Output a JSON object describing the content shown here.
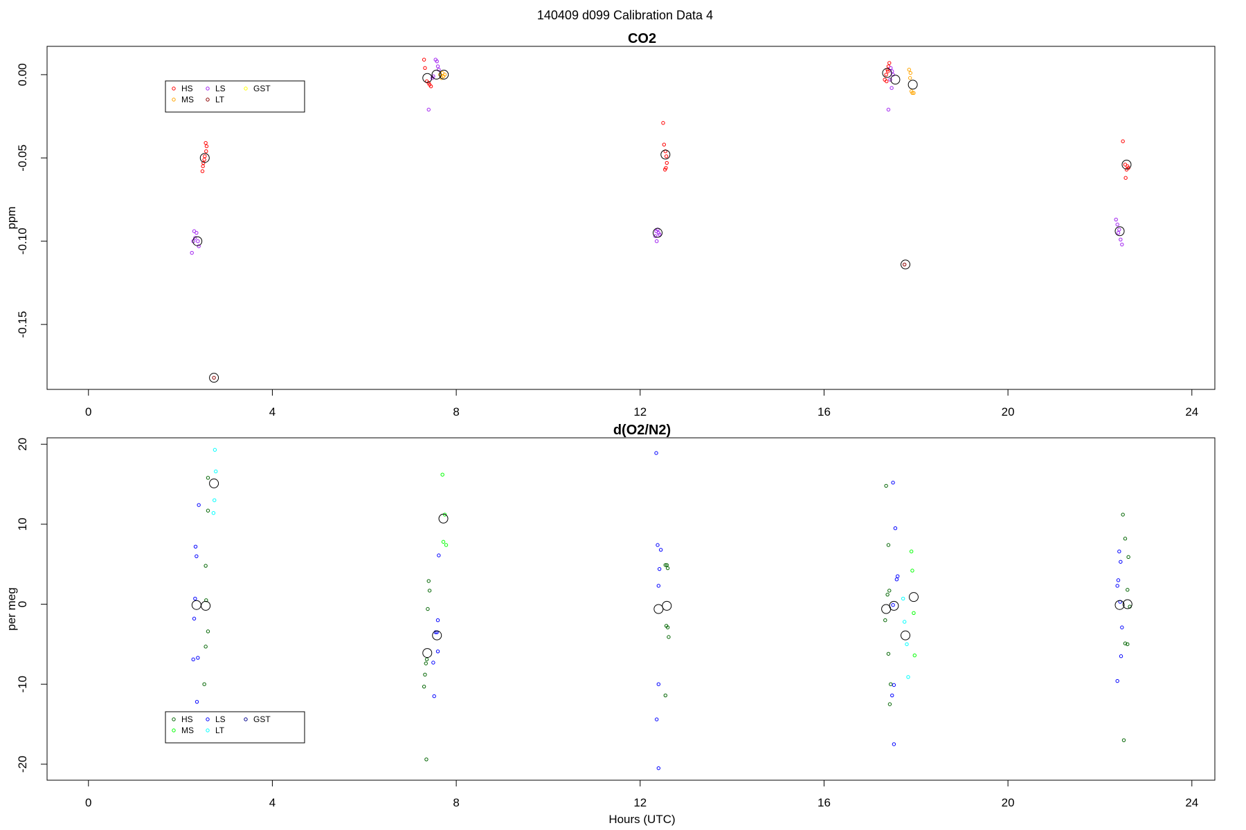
{
  "figure": {
    "suptitle": "140409   d099   Calibration Data 4"
  },
  "chart_data": [
    {
      "type": "scatter",
      "title": "CO2",
      "xlabel": "",
      "ylabel": "ppm",
      "xlim": [
        -0.9,
        24.5
      ],
      "ylim": [
        -0.189,
        0.017
      ],
      "xticks": [
        0,
        4,
        8,
        12,
        16,
        20,
        24
      ],
      "yticks": [
        0.0,
        -0.05,
        -0.1,
        -0.15
      ],
      "ytick_labels": [
        "0.00",
        "-0.05",
        "-0.10",
        "-0.15"
      ],
      "grid": false,
      "legend": {
        "placement": "top-left",
        "entries": [
          {
            "label": "HS",
            "color": "#ff0000"
          },
          {
            "label": "LS",
            "color": "#a020f0"
          },
          {
            "label": "GST",
            "color": "#ffff00"
          },
          {
            "label": "MS",
            "color": "#ffa500"
          },
          {
            "label": "LT",
            "color": "#8b0000"
          }
        ]
      },
      "series": [
        {
          "name": "HS",
          "color": "#ff0000",
          "points": [
            [
              2.55,
              -0.041
            ],
            [
              2.57,
              -0.043
            ],
            [
              2.56,
              -0.046
            ],
            [
              2.53,
              -0.049
            ],
            [
              2.52,
              -0.051
            ],
            [
              2.5,
              -0.053
            ],
            [
              2.49,
              -0.055
            ],
            [
              2.48,
              -0.058
            ],
            [
              7.3,
              0.009
            ],
            [
              7.32,
              0.004
            ],
            [
              7.36,
              -0.004
            ],
            [
              7.4,
              -0.005
            ],
            [
              7.42,
              -0.006
            ],
            [
              7.45,
              -0.007
            ],
            [
              12.5,
              -0.029
            ],
            [
              12.52,
              -0.042
            ],
            [
              12.55,
              -0.046
            ],
            [
              12.57,
              -0.049
            ],
            [
              12.58,
              -0.053
            ],
            [
              12.56,
              -0.056
            ],
            [
              12.54,
              -0.057
            ],
            [
              17.35,
              0.0
            ],
            [
              17.38,
              0.003
            ],
            [
              17.4,
              0.005
            ],
            [
              17.42,
              0.007
            ],
            [
              17.32,
              -0.003
            ],
            [
              17.36,
              -0.004
            ],
            [
              17.39,
              0.002
            ],
            [
              22.5,
              -0.04
            ],
            [
              22.55,
              -0.054
            ],
            [
              22.6,
              -0.055
            ],
            [
              22.62,
              -0.056
            ],
            [
              22.58,
              -0.057
            ],
            [
              22.56,
              -0.062
            ]
          ]
        },
        {
          "name": "LS",
          "color": "#a020f0",
          "points": [
            [
              2.3,
              -0.094
            ],
            [
              2.35,
              -0.095
            ],
            [
              2.32,
              -0.098
            ],
            [
              2.28,
              -0.1
            ],
            [
              2.38,
              -0.1
            ],
            [
              2.4,
              -0.103
            ],
            [
              2.25,
              -0.107
            ],
            [
              7.4,
              -0.021
            ],
            [
              7.55,
              0.009
            ],
            [
              7.58,
              0.008
            ],
            [
              7.6,
              0.005
            ],
            [
              7.62,
              0.003
            ],
            [
              7.5,
              -0.001
            ],
            [
              7.48,
              -0.002
            ],
            [
              12.35,
              -0.094
            ],
            [
              12.38,
              -0.093
            ],
            [
              12.4,
              -0.095
            ],
            [
              12.42,
              -0.096
            ],
            [
              12.33,
              -0.097
            ],
            [
              12.36,
              -0.1
            ],
            [
              17.4,
              -0.021
            ],
            [
              17.45,
              0.004
            ],
            [
              17.48,
              0.002
            ],
            [
              17.5,
              0.0
            ],
            [
              17.44,
              -0.003
            ],
            [
              17.47,
              -0.008
            ],
            [
              22.35,
              -0.087
            ],
            [
              22.38,
              -0.09
            ],
            [
              22.42,
              -0.093
            ],
            [
              22.4,
              -0.095
            ],
            [
              22.45,
              -0.099
            ],
            [
              22.48,
              -0.102
            ]
          ]
        },
        {
          "name": "MS",
          "color": "#ffa500",
          "points": [
            [
              7.65,
              0.0
            ],
            [
              7.7,
              0.001
            ],
            [
              7.72,
              -0.001
            ],
            [
              7.75,
              0.0
            ],
            [
              7.68,
              -0.002
            ],
            [
              17.85,
              0.003
            ],
            [
              17.88,
              0.001
            ],
            [
              17.9,
              -0.01
            ],
            [
              17.92,
              -0.011
            ],
            [
              17.95,
              -0.011
            ],
            [
              17.87,
              -0.002
            ]
          ]
        },
        {
          "name": "LT",
          "color": "#8b0000",
          "points": [
            [
              2.73,
              -0.182
            ],
            [
              17.75,
              -0.114
            ]
          ]
        },
        {
          "name": "GST",
          "color": "#ffff00",
          "points": []
        }
      ],
      "means": [
        [
          2.53,
          -0.05
        ],
        [
          2.37,
          -0.1
        ],
        [
          2.73,
          -0.182
        ],
        [
          7.37,
          -0.002
        ],
        [
          7.57,
          0.0
        ],
        [
          7.73,
          0.0
        ],
        [
          12.55,
          -0.048
        ],
        [
          12.38,
          -0.095
        ],
        [
          17.37,
          0.001
        ],
        [
          17.55,
          -0.003
        ],
        [
          17.77,
          -0.114
        ],
        [
          17.93,
          -0.006
        ],
        [
          22.58,
          -0.054
        ],
        [
          22.43,
          -0.094
        ]
      ]
    },
    {
      "type": "scatter",
      "title": "d(O2/N2)",
      "xlabel": "Hours (UTC)",
      "ylabel": "per meg",
      "xlim": [
        -0.9,
        24.5
      ],
      "ylim": [
        -22,
        20.8
      ],
      "xticks": [
        0,
        4,
        8,
        12,
        16,
        20,
        24
      ],
      "yticks": [
        20,
        10,
        0,
        -10,
        -20
      ],
      "ytick_labels": [
        "20",
        "10",
        "0",
        "-10",
        "-20"
      ],
      "grid": false,
      "legend": {
        "placement": "bottom-left",
        "entries": [
          {
            "label": "HS",
            "color": "#006400"
          },
          {
            "label": "LS",
            "color": "#0000ff"
          },
          {
            "label": "GST",
            "color": "#00008b"
          },
          {
            "label": "MS",
            "color": "#00ff00"
          },
          {
            "label": "LT",
            "color": "#00ffff"
          }
        ]
      },
      "series": [
        {
          "name": "HS",
          "color": "#006400",
          "points": [
            [
              2.6,
              15.8
            ],
            [
              2.6,
              11.7
            ],
            [
              2.55,
              4.8
            ],
            [
              2.56,
              0.5
            ],
            [
              2.6,
              -3.4
            ],
            [
              2.55,
              -5.3
            ],
            [
              2.52,
              -10.0
            ],
            [
              7.35,
              -19.4
            ],
            [
              7.4,
              2.9
            ],
            [
              7.42,
              1.7
            ],
            [
              7.38,
              -0.6
            ],
            [
              7.36,
              -6.9
            ],
            [
              7.34,
              -7.4
            ],
            [
              7.32,
              -8.8
            ],
            [
              7.3,
              -10.3
            ],
            [
              12.55,
              4.9
            ],
            [
              12.58,
              4.9
            ],
            [
              12.6,
              4.5
            ],
            [
              12.57,
              -2.7
            ],
            [
              12.6,
              -2.9
            ],
            [
              12.62,
              -4.1
            ],
            [
              12.55,
              -11.4
            ],
            [
              17.35,
              14.8
            ],
            [
              17.4,
              7.4
            ],
            [
              17.42,
              1.7
            ],
            [
              17.38,
              1.2
            ],
            [
              17.33,
              -2.0
            ],
            [
              17.4,
              -6.2
            ],
            [
              17.45,
              -10.0
            ],
            [
              17.43,
              -12.5
            ],
            [
              22.5,
              11.2
            ],
            [
              22.55,
              8.2
            ],
            [
              22.62,
              5.9
            ],
            [
              22.6,
              1.8
            ],
            [
              22.65,
              -0.3
            ],
            [
              22.55,
              -4.9
            ],
            [
              22.6,
              -5.0
            ],
            [
              22.52,
              -17.0
            ]
          ]
        },
        {
          "name": "LS",
          "color": "#0000ff",
          "points": [
            [
              2.4,
              12.4
            ],
            [
              2.33,
              7.2
            ],
            [
              2.35,
              6.0
            ],
            [
              2.32,
              0.7
            ],
            [
              2.3,
              -1.8
            ],
            [
              2.28,
              -6.9
            ],
            [
              2.38,
              -6.7
            ],
            [
              2.36,
              -12.2
            ],
            [
              7.62,
              6.1
            ],
            [
              7.6,
              -2.0
            ],
            [
              7.58,
              -3.5
            ],
            [
              7.55,
              -3.5
            ],
            [
              7.5,
              -7.3
            ],
            [
              7.52,
              -11.5
            ],
            [
              7.6,
              -5.9
            ],
            [
              12.35,
              18.9
            ],
            [
              12.38,
              7.4
            ],
            [
              12.45,
              6.8
            ],
            [
              12.42,
              4.4
            ],
            [
              12.4,
              2.3
            ],
            [
              12.4,
              -10.0
            ],
            [
              12.36,
              -14.4
            ],
            [
              12.4,
              -20.5
            ],
            [
              17.5,
              15.2
            ],
            [
              17.55,
              9.5
            ],
            [
              17.6,
              3.5
            ],
            [
              17.58,
              3.1
            ],
            [
              17.5,
              -0.1
            ],
            [
              17.52,
              -10.1
            ],
            [
              17.48,
              -11.4
            ],
            [
              17.52,
              -17.5
            ],
            [
              22.4,
              3.0
            ],
            [
              22.42,
              6.6
            ],
            [
              22.45,
              5.3
            ],
            [
              22.38,
              2.3
            ],
            [
              22.44,
              0.3
            ],
            [
              22.48,
              -2.9
            ],
            [
              22.46,
              -6.5
            ],
            [
              22.38,
              -9.6
            ]
          ]
        },
        {
          "name": "MS",
          "color": "#00ff00",
          "points": [
            [
              7.7,
              16.2
            ],
            [
              7.75,
              11.2
            ],
            [
              7.72,
              7.8
            ],
            [
              7.78,
              7.4
            ],
            [
              17.9,
              6.6
            ],
            [
              17.92,
              4.2
            ],
            [
              17.95,
              -1.1
            ],
            [
              17.97,
              -6.4
            ]
          ]
        },
        {
          "name": "LT",
          "color": "#00ffff",
          "points": [
            [
              2.75,
              19.3
            ],
            [
              2.77,
              16.6
            ],
            [
              2.74,
              13.0
            ],
            [
              2.72,
              11.4
            ],
            [
              17.72,
              0.7
            ],
            [
              17.75,
              -2.2
            ],
            [
              17.8,
              -5.0
            ],
            [
              17.83,
              -9.1
            ]
          ]
        },
        {
          "name": "GST",
          "color": "#00008b",
          "points": []
        }
      ],
      "means": [
        [
          2.73,
          15.1
        ],
        [
          2.35,
          -0.1
        ],
        [
          2.55,
          -0.2
        ],
        [
          7.72,
          10.7
        ],
        [
          7.37,
          -6.1
        ],
        [
          7.58,
          -3.9
        ],
        [
          12.4,
          -0.6
        ],
        [
          12.58,
          -0.2
        ],
        [
          17.35,
          -0.6
        ],
        [
          17.52,
          -0.2
        ],
        [
          17.95,
          0.9
        ],
        [
          17.77,
          -3.9
        ],
        [
          22.43,
          -0.1
        ],
        [
          22.6,
          0.0
        ]
      ]
    }
  ]
}
